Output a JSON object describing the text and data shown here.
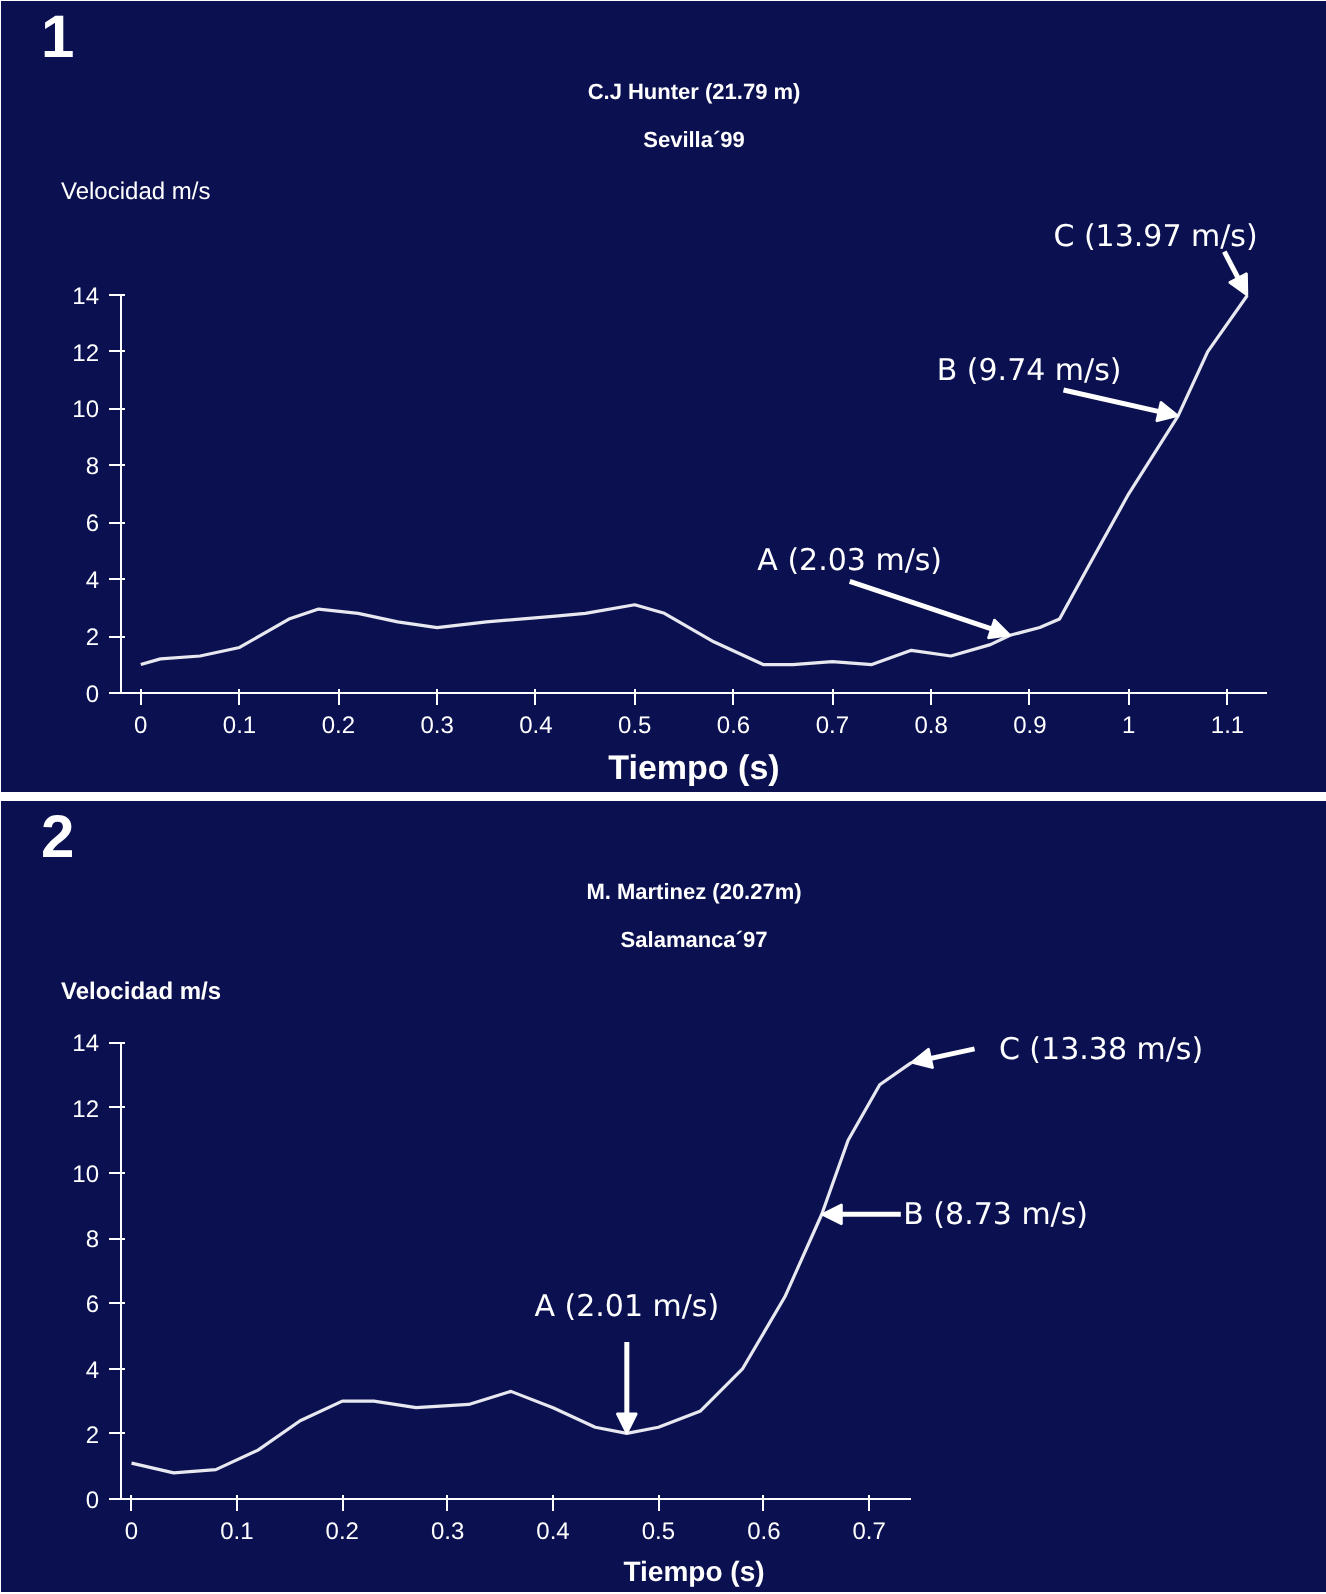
{
  "chart_data": [
    {
      "type": "line",
      "title": "C.J Hunter (21.79 m)",
      "subtitle": "Sevilla´99",
      "xlabel": "Tiempo (s)",
      "ylabel": "Velocidad m/s",
      "annotations": [
        "1",
        {
          "text": "A (2.03 m/s)",
          "x": 0.88,
          "y": 2.03
        },
        {
          "text": "B (9.74 m/s)",
          "x": 1.05,
          "y": 9.74
        },
        {
          "text": "C (13.97 m/s)",
          "x": 1.12,
          "y": 13.97
        }
      ],
      "x": [
        0,
        0.02,
        0.06,
        0.1,
        0.15,
        0.18,
        0.22,
        0.26,
        0.3,
        0.35,
        0.42,
        0.45,
        0.5,
        0.53,
        0.58,
        0.63,
        0.66,
        0.7,
        0.74,
        0.78,
        0.82,
        0.86,
        0.88,
        0.91,
        0.93,
        0.96,
        1.0,
        1.05,
        1.08,
        1.12
      ],
      "series": [
        {
          "color": "#e8e8f0",
          "values": [
            1.0,
            1.2,
            1.3,
            1.6,
            2.6,
            2.95,
            2.8,
            2.5,
            2.3,
            2.5,
            2.7,
            2.8,
            3.1,
            2.8,
            1.8,
            1.0,
            1.0,
            1.1,
            1.0,
            1.5,
            1.3,
            1.7,
            2.03,
            2.3,
            2.6,
            4.5,
            7.0,
            9.74,
            12.0,
            13.97
          ]
        }
      ],
      "xlim": [
        -0.02,
        1.14
      ],
      "ylim": [
        0,
        14
      ],
      "xticks": [
        0,
        0.1,
        0.2,
        0.3,
        0.4,
        0.5,
        0.6,
        0.7,
        0.8,
        0.9,
        1,
        1.1
      ],
      "yticks": [
        0,
        2,
        4,
        6,
        8,
        10,
        12,
        14
      ],
      "grid": false,
      "marker": "none",
      "line_style": "solid"
    },
    {
      "type": "line",
      "title": "M. Martinez (20.27m)",
      "subtitle": "Salamanca´97",
      "xlabel": "Tiempo (s)",
      "ylabel": "Velocidad m/s",
      "annotations": [
        "2",
        {
          "text": "A (2.01 m/s)",
          "x": 0.47,
          "y": 2.01
        },
        {
          "text": "B (8.73 m/s)",
          "x": 0.655,
          "y": 8.73
        },
        {
          "text": "C (13.38 m/s)",
          "x": 0.74,
          "y": 13.38
        }
      ],
      "x": [
        0,
        0.04,
        0.08,
        0.12,
        0.16,
        0.2,
        0.23,
        0.27,
        0.32,
        0.36,
        0.4,
        0.44,
        0.47,
        0.5,
        0.54,
        0.58,
        0.62,
        0.655,
        0.68,
        0.71,
        0.74
      ],
      "series": [
        {
          "color": "#e8e8f0",
          "values": [
            1.1,
            0.8,
            0.9,
            1.5,
            2.4,
            3.0,
            3.0,
            2.8,
            2.9,
            3.3,
            2.8,
            2.2,
            2.01,
            2.2,
            2.7,
            4.0,
            6.2,
            8.73,
            11.0,
            12.7,
            13.38
          ]
        }
      ],
      "xlim": [
        -0.01,
        0.74
      ],
      "ylim": [
        0,
        14
      ],
      "xticks": [
        0,
        0.1,
        0.2,
        0.3,
        0.4,
        0.5,
        0.6,
        0.7
      ],
      "yticks": [
        0,
        2,
        4,
        6,
        8,
        10,
        12,
        14
      ],
      "grid": false,
      "marker": "none",
      "line_style": "solid"
    }
  ]
}
